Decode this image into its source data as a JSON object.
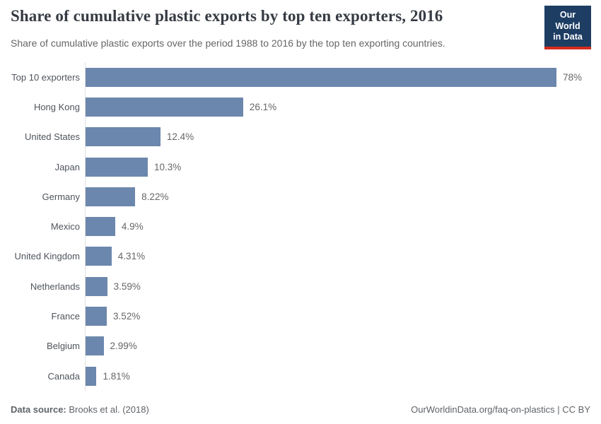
{
  "header": {
    "title": "Share of cumulative plastic exports by top ten exporters, 2016",
    "subtitle": "Share of cumulative plastic exports over the period 1988 to 2016 by the top ten exporting countries.",
    "logo": {
      "line1": "Our World",
      "line2": "in Data",
      "bg_color": "#1d3d63",
      "accent_color": "#d42b1d"
    }
  },
  "chart_data": {
    "type": "bar",
    "orientation": "horizontal",
    "title": "Share of cumulative plastic exports by top ten exporters, 2016",
    "xlabel": "",
    "ylabel": "",
    "xlim": [
      0,
      78
    ],
    "grid": false,
    "legend": false,
    "bar_color": "#6c87ad",
    "axis_line_color": "#e0e0e0",
    "categories": [
      "Top 10 exporters",
      "Hong Kong",
      "United States",
      "Japan",
      "Germany",
      "Mexico",
      "United Kingdom",
      "Netherlands",
      "France",
      "Belgium",
      "Canada"
    ],
    "values": [
      78,
      26.1,
      12.4,
      10.3,
      8.22,
      4.9,
      4.31,
      3.59,
      3.52,
      2.99,
      1.81
    ],
    "value_labels": [
      "78%",
      "26.1%",
      "12.4%",
      "10.3%",
      "8.22%",
      "4.9%",
      "4.31%",
      "3.59%",
      "3.52%",
      "2.99%",
      "1.81%"
    ]
  },
  "footer": {
    "source_label": "Data source:",
    "source_value": " Brooks et al. (2018)",
    "right_text": "OurWorldinData.org/faq-on-plastics | CC BY"
  }
}
